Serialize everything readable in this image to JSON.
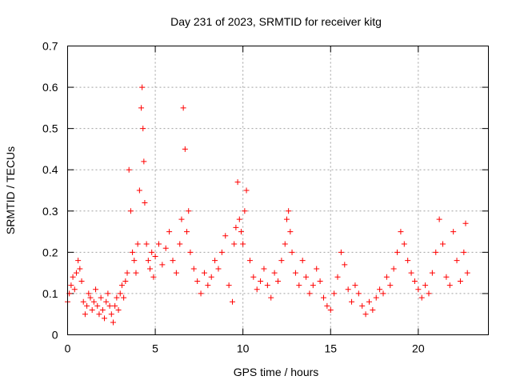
{
  "chart_data": {
    "type": "scatter",
    "title": "Day 231 of 2023, SRMTID for receiver kitg",
    "xlabel": "GPS time / hours",
    "ylabel": "SRMTID / TECUs",
    "xlim": [
      0,
      24
    ],
    "ylim": [
      0,
      0.7
    ],
    "x_ticks": [
      0,
      5,
      10,
      15,
      20
    ],
    "x_tick_labels": [
      "0",
      "5",
      "10",
      "15",
      "20"
    ],
    "y_ticks": [
      0,
      0.1,
      0.2,
      0.3,
      0.4,
      0.5,
      0.6,
      0.7
    ],
    "y_tick_labels": [
      "0",
      "0.1",
      "0.2",
      "0.3",
      "0.4",
      "0.5",
      "0.6",
      "0.7"
    ],
    "grid": true,
    "marker": "+",
    "marker_color": "#ff0000",
    "series": [
      {
        "name": "SRMTID",
        "x": [
          0.0,
          0.1,
          0.2,
          0.3,
          0.4,
          0.5,
          0.6,
          0.7,
          0.8,
          0.9,
          1.0,
          1.1,
          1.2,
          1.3,
          1.4,
          1.5,
          1.6,
          1.7,
          1.8,
          1.9,
          2.0,
          2.1,
          2.2,
          2.3,
          2.4,
          2.5,
          2.6,
          2.7,
          2.8,
          2.9,
          3.0,
          3.1,
          3.2,
          3.3,
          3.4,
          3.5,
          3.6,
          3.7,
          3.8,
          3.9,
          4.0,
          4.1,
          4.2,
          4.25,
          4.3,
          4.35,
          4.4,
          4.5,
          4.6,
          4.7,
          4.8,
          4.9,
          5.0,
          5.2,
          5.4,
          5.6,
          5.8,
          6.0,
          6.2,
          6.4,
          6.5,
          6.6,
          6.7,
          6.8,
          6.9,
          7.0,
          7.2,
          7.4,
          7.6,
          7.8,
          8.0,
          8.2,
          8.4,
          8.6,
          8.8,
          9.0,
          9.2,
          9.4,
          9.5,
          9.6,
          9.7,
          9.8,
          9.9,
          10.0,
          10.1,
          10.2,
          10.4,
          10.6,
          10.8,
          11.0,
          11.2,
          11.4,
          11.6,
          11.8,
          12.0,
          12.2,
          12.4,
          12.5,
          12.6,
          12.7,
          12.8,
          13.0,
          13.2,
          13.4,
          13.6,
          13.8,
          14.0,
          14.2,
          14.4,
          14.6,
          14.8,
          15.0,
          15.2,
          15.4,
          15.6,
          15.8,
          16.0,
          16.2,
          16.4,
          16.6,
          16.8,
          17.0,
          17.2,
          17.4,
          17.6,
          17.8,
          18.0,
          18.2,
          18.4,
          18.6,
          18.8,
          19.0,
          19.2,
          19.4,
          19.6,
          19.8,
          20.0,
          20.2,
          20.4,
          20.6,
          20.8,
          21.0,
          21.2,
          21.4,
          21.6,
          21.8,
          22.0,
          22.2,
          22.4,
          22.6,
          22.7,
          22.8
        ],
        "y": [
          0.08,
          0.1,
          0.12,
          0.14,
          0.11,
          0.15,
          0.18,
          0.16,
          0.13,
          0.08,
          0.05,
          0.07,
          0.1,
          0.09,
          0.06,
          0.08,
          0.11,
          0.07,
          0.05,
          0.09,
          0.06,
          0.04,
          0.08,
          0.1,
          0.07,
          0.05,
          0.03,
          0.07,
          0.09,
          0.06,
          0.1,
          0.12,
          0.09,
          0.13,
          0.15,
          0.4,
          0.3,
          0.2,
          0.18,
          0.15,
          0.22,
          0.35,
          0.55,
          0.6,
          0.5,
          0.42,
          0.32,
          0.22,
          0.18,
          0.16,
          0.2,
          0.14,
          0.19,
          0.22,
          0.17,
          0.21,
          0.25,
          0.18,
          0.15,
          0.22,
          0.28,
          0.55,
          0.45,
          0.25,
          0.3,
          0.2,
          0.16,
          0.13,
          0.1,
          0.15,
          0.12,
          0.14,
          0.18,
          0.16,
          0.2,
          0.24,
          0.12,
          0.08,
          0.22,
          0.26,
          0.37,
          0.28,
          0.25,
          0.22,
          0.3,
          0.35,
          0.18,
          0.14,
          0.11,
          0.13,
          0.16,
          0.12,
          0.09,
          0.15,
          0.13,
          0.18,
          0.22,
          0.28,
          0.3,
          0.25,
          0.2,
          0.15,
          0.12,
          0.18,
          0.14,
          0.1,
          0.12,
          0.16,
          0.13,
          0.09,
          0.07,
          0.06,
          0.1,
          0.14,
          0.2,
          0.17,
          0.11,
          0.08,
          0.12,
          0.1,
          0.07,
          0.05,
          0.08,
          0.06,
          0.09,
          0.11,
          0.1,
          0.14,
          0.12,
          0.16,
          0.2,
          0.25,
          0.22,
          0.18,
          0.15,
          0.13,
          0.11,
          0.09,
          0.12,
          0.1,
          0.15,
          0.2,
          0.28,
          0.22,
          0.14,
          0.12,
          0.25,
          0.18,
          0.13,
          0.2,
          0.27,
          0.15
        ]
      }
    ]
  }
}
